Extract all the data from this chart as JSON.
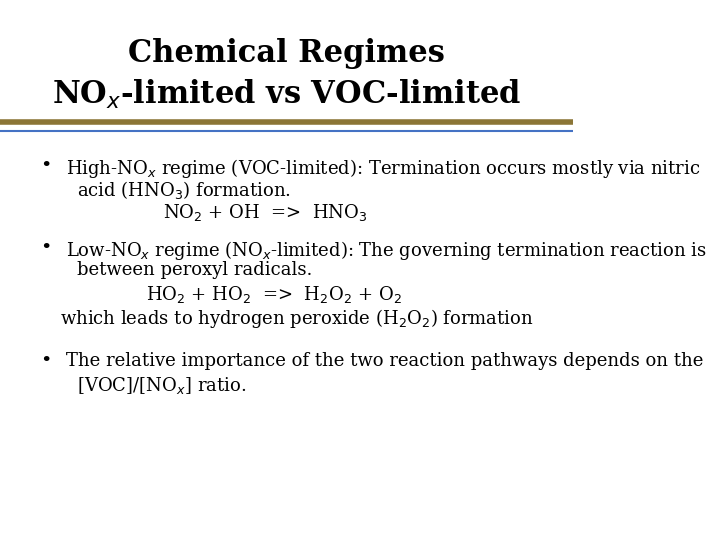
{
  "title_line1": "Chemical Regimes",
  "title_line2": "NO$_x$-limited vs VOC-limited",
  "background_color": "#ffffff",
  "title_color": "#000000",
  "title_fontsize": 22,
  "body_fontsize": 13,
  "separator_color1": "#8B7536",
  "separator_color2": "#4472C4",
  "bullet1_text1": "High-NO$_x$ regime (VOC-limited): Termination occurs mostly via nitric",
  "bullet1_text2": "acid (HNO$_3$) formation.",
  "bullet1_eq": "NO$_2$ + OH  =>  HNO$_3$",
  "bullet2_text1": "Low-NO$_x$ regime (NO$_x$-limited): The governing termination reaction is",
  "bullet2_text2": "between peroxyl radicals.",
  "bullet2_eq": "HO$_2$ + HO$_2$  =>  H$_2$O$_2$ + O$_2$",
  "bullet2_text3": "which leads to hydrogen peroxide (H$_2$O$_2$) formation",
  "bullet3_text1": "The relative importance of the two reaction pathways depends on the",
  "bullet3_text2": "[VOC]/[NO$_x$] ratio."
}
